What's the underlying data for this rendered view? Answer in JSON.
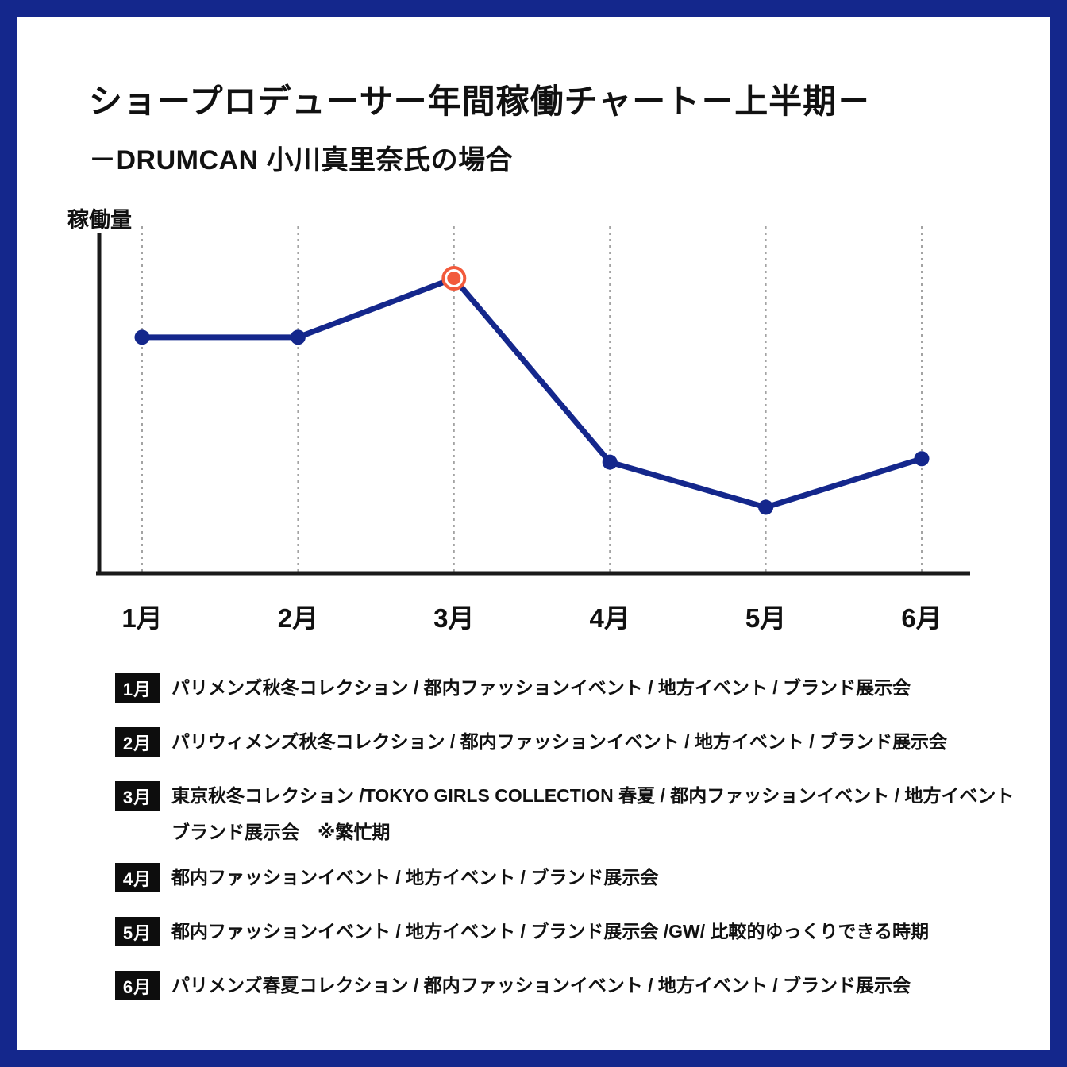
{
  "page": {
    "title": "ショープロデューサー年間稼働チャート－上半期－",
    "subtitle": "－DRUMCAN 小川真里奈氏の場合"
  },
  "colors": {
    "navy": "#14278C",
    "orange": "#F25A3C",
    "axis": "#1a1a1a",
    "gridline": "#a3a3a3",
    "badge": "#0d0d0d",
    "text": "#111111"
  },
  "chart_data": {
    "type": "line",
    "title": "ショープロデューサー年間稼働チャート－上半期－",
    "ylabel": "稼働量",
    "xlabel": "",
    "categories": [
      "1月",
      "2月",
      "3月",
      "4月",
      "5月",
      "6月"
    ],
    "series": [
      {
        "name": "稼働量",
        "values": [
          68,
          68,
          85,
          32,
          19,
          33
        ]
      }
    ],
    "ylim": [
      0,
      100
    ],
    "y_ticks": "none (qualitative axis, no numeric tick labels)",
    "grid": "vertical dotted gridlines at each month",
    "highlight": {
      "index": 2,
      "category": "3月",
      "style": "orange double-ring marker",
      "meaning": "繁忙期 (busiest period)"
    },
    "line_color": "#14278C",
    "point_color": "#14278C",
    "highlight_color": "#F25A3C"
  },
  "legend": {
    "items": [
      {
        "month": "1月",
        "lines": [
          "パリメンズ秋冬コレクション / 都内ファッションイベント / 地方イベント / ブランド展示会"
        ]
      },
      {
        "month": "2月",
        "lines": [
          "パリウィメンズ秋冬コレクション / 都内ファッションイベント / 地方イベント / ブランド展示会"
        ]
      },
      {
        "month": "3月",
        "lines": [
          "東京秋冬コレクション /TOKYO GIRLS COLLECTION 春夏 / 都内ファッションイベント / 地方イベント",
          "ブランド展示会　※繁忙期"
        ]
      },
      {
        "month": "4月",
        "lines": [
          "都内ファッションイベント / 地方イベント / ブランド展示会"
        ]
      },
      {
        "month": "5月",
        "lines": [
          "都内ファッションイベント / 地方イベント / ブランド展示会 /GW/ 比較的ゆっくりできる時期"
        ]
      },
      {
        "month": "6月",
        "lines": [
          "パリメンズ春夏コレクション / 都内ファッションイベント / 地方イベント / ブランド展示会"
        ]
      }
    ]
  }
}
